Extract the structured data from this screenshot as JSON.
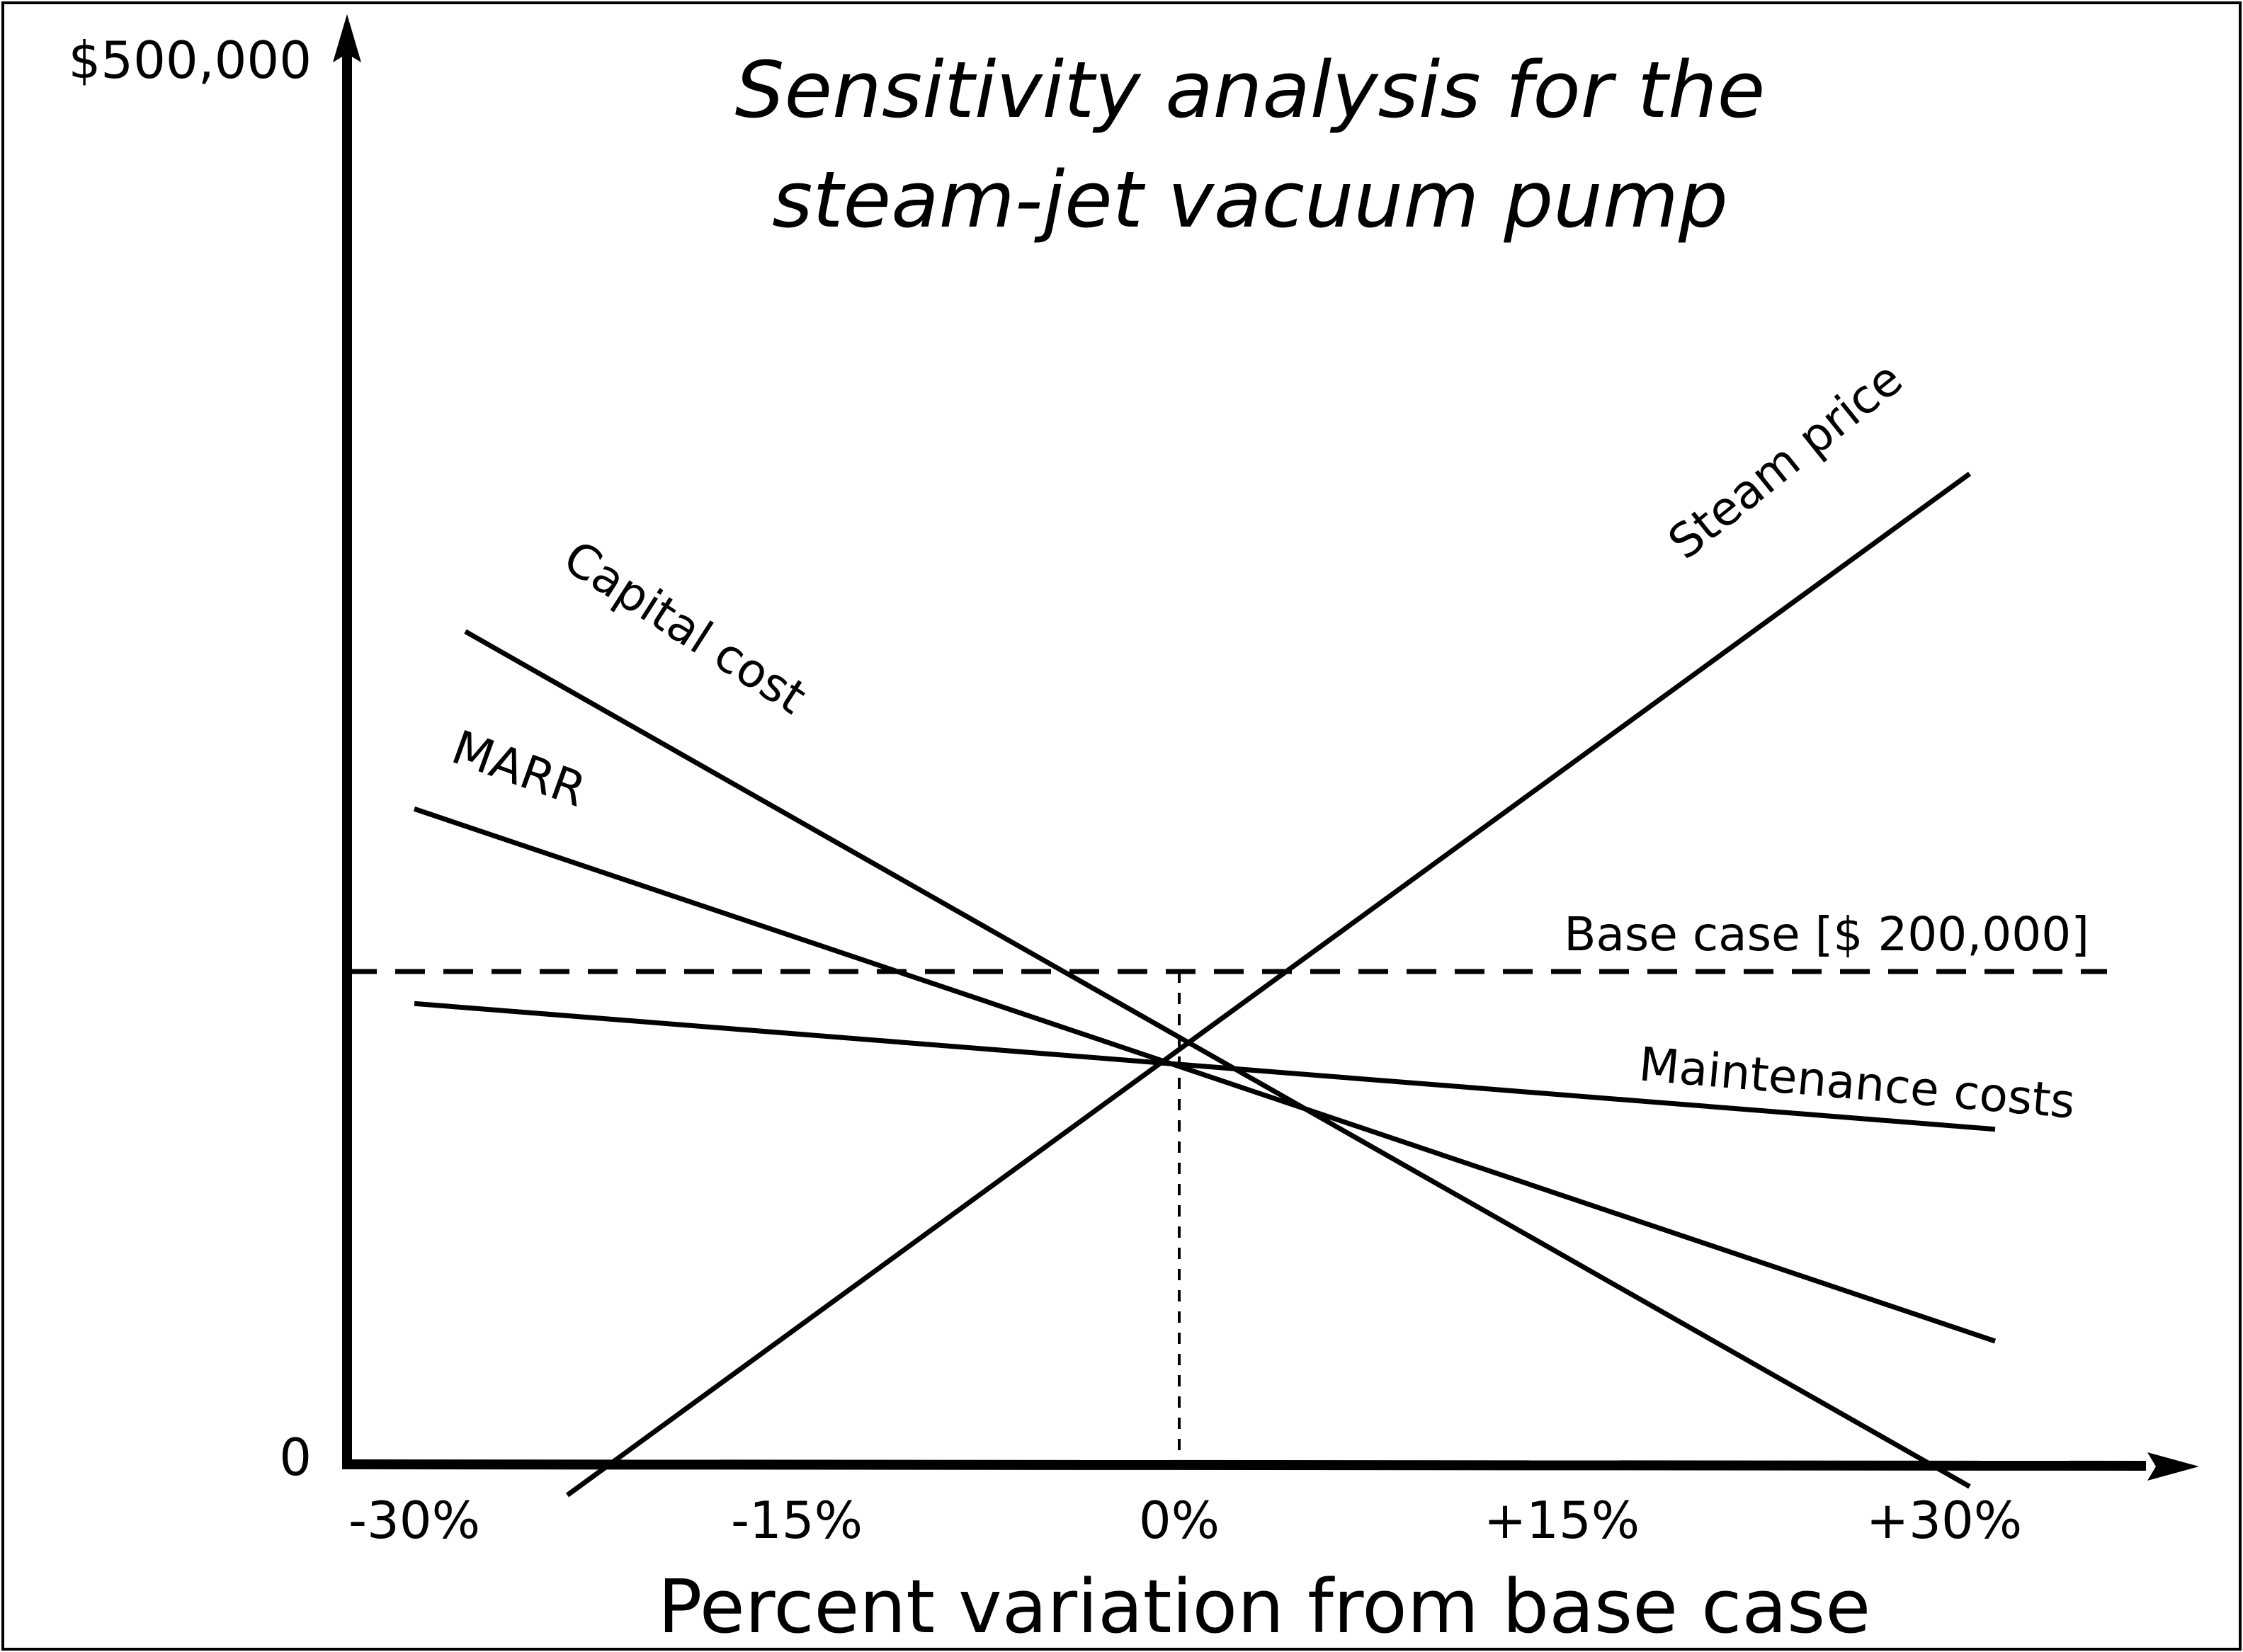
{
  "chart_data": {
    "type": "line",
    "title": [
      "Sensitivity analysis for the",
      "steam-jet vacuum pump"
    ],
    "xlabel": "Percent variation from base case",
    "ylabel": "",
    "x_ticks": [
      {
        "value": -30,
        "label": "-30%"
      },
      {
        "value": -15,
        "label": "-15%"
      },
      {
        "value": 0,
        "label": "0%"
      },
      {
        "value": 15,
        "label": "+15%"
      },
      {
        "value": 30,
        "label": "+30%"
      }
    ],
    "y_ticks": [
      {
        "value": 0,
        "label": "0"
      },
      {
        "value": 500000,
        "label": "$500,000"
      }
    ],
    "xlim": [
      -30,
      35
    ],
    "ylim": [
      0,
      500000
    ],
    "series": [
      {
        "name": "Steam price",
        "points": [
          [
            -24,
            -12500
          ],
          [
            31,
            402000
          ]
        ]
      },
      {
        "name": "Capital cost",
        "points": [
          [
            -28,
            338000
          ],
          [
            31,
            -9000
          ]
        ]
      },
      {
        "name": "MARR",
        "points": [
          [
            -30,
            266000
          ],
          [
            32,
            50000
          ]
        ]
      },
      {
        "name": "Maintenance costs",
        "points": [
          [
            -30,
            187000
          ],
          [
            32,
            136000
          ]
        ]
      }
    ],
    "base_case": {
      "label": "Base case [$ 200,000]",
      "value": 200000
    }
  }
}
